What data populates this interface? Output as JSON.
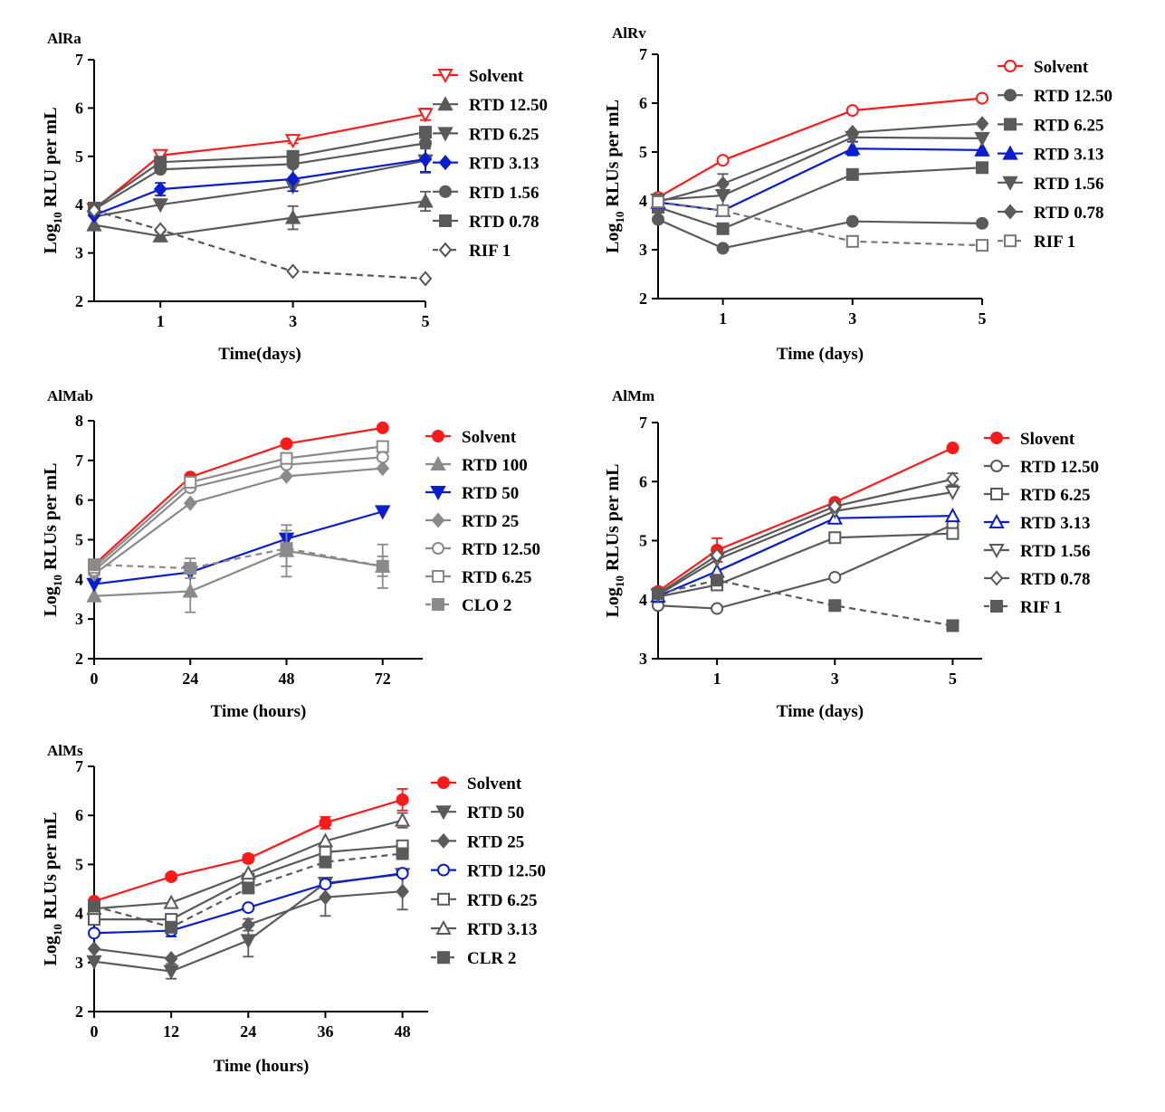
{
  "chart_data": [
    {
      "type": "line",
      "title": "AlRa",
      "ylabel": "Log10 RLU per mL",
      "ylabel_parts": [
        "Log",
        "10",
        " RLU per mL"
      ],
      "xlabel": "Time(days)",
      "x": [
        0,
        1,
        3,
        5
      ],
      "xticks": [
        1,
        3,
        5
      ],
      "xtick_labels": [
        "1",
        "3",
        "5"
      ],
      "xlim": [
        0,
        5
      ],
      "ylim": [
        2,
        7
      ],
      "yticks": [
        2,
        3,
        4,
        5,
        6,
        7
      ],
      "ytick_labels": [
        "2",
        "3",
        "4",
        "5",
        "6",
        "7"
      ],
      "grid": false,
      "legend_position": "right",
      "series": [
        {
          "name": "Solvent",
          "values": [
            3.9,
            5.02,
            5.33,
            5.87
          ],
          "errors": [
            0.05,
            0.08,
            0.06,
            0.12
          ],
          "color": "#ff1a1a",
          "marker": "triangle-down-open",
          "dashed": false
        },
        {
          "name": "RTD 12.50",
          "values": [
            3.58,
            3.35,
            3.73,
            4.07
          ],
          "errors": [
            0.05,
            0.08,
            0.24,
            0.2
          ],
          "color": "#5a5a5a",
          "marker": "triangle-up",
          "dashed": false
        },
        {
          "name": "RTD 6.25",
          "values": [
            3.75,
            4.0,
            4.38,
            4.91
          ],
          "errors": [
            0.05,
            0.05,
            0.05,
            0.25
          ],
          "color": "#5a5a5a",
          "marker": "triangle-down",
          "dashed": false
        },
        {
          "name": "RTD 3.13",
          "values": [
            3.78,
            4.32,
            4.53,
            4.94
          ],
          "errors": [
            0.05,
            0.13,
            0.25,
            0.26
          ],
          "color": "#0a1ecf",
          "marker": "diamond",
          "dashed": false
        },
        {
          "name": "RTD 1.56",
          "values": [
            3.9,
            4.73,
            4.84,
            5.27
          ],
          "errors": [
            0.05,
            0.05,
            0.06,
            0.06
          ],
          "color": "#5a5a5a",
          "marker": "circle",
          "dashed": false
        },
        {
          "name": "RTD 0.78",
          "values": [
            3.93,
            4.88,
            5.0,
            5.5
          ],
          "errors": [
            0.05,
            0.05,
            0.05,
            0.1
          ],
          "color": "#5a5a5a",
          "marker": "square",
          "dashed": false
        },
        {
          "name": "RIF 1",
          "values": [
            3.88,
            3.48,
            2.62,
            2.47
          ],
          "errors": [
            0.05,
            0.05,
            0.04,
            0.04
          ],
          "color": "#555555",
          "marker": "diamond-open",
          "dashed": true
        }
      ]
    },
    {
      "type": "line",
      "title": "AlRv",
      "ylabel": "Log10 RLUs per mL",
      "ylabel_parts": [
        "Log",
        "10",
        " RLUs per mL"
      ],
      "xlabel": "Time (days)",
      "x": [
        0,
        1,
        3,
        5
      ],
      "xticks": [
        1,
        3,
        5
      ],
      "xtick_labels": [
        "1",
        "3",
        "5"
      ],
      "xlim": [
        0,
        5
      ],
      "ylim": [
        2,
        7
      ],
      "yticks": [
        2,
        3,
        4,
        5,
        6,
        7
      ],
      "ytick_labels": [
        "2",
        "3",
        "4",
        "5",
        "6",
        "7"
      ],
      "grid": false,
      "legend_position": "right",
      "series": [
        {
          "name": "Solvent",
          "values": [
            4.07,
            4.83,
            5.85,
            6.1
          ],
          "errors": [
            0.04,
            0.05,
            0.04,
            0.04
          ],
          "color": "#ff1a1a",
          "marker": "circle-open",
          "dashed": false
        },
        {
          "name": "RTD 12.50",
          "values": [
            3.62,
            3.03,
            3.58,
            3.54
          ],
          "errors": [
            0.04,
            0.04,
            0.04,
            0.04
          ],
          "color": "#5a5a5a",
          "marker": "circle",
          "dashed": false
        },
        {
          "name": "RTD 6.25",
          "values": [
            3.87,
            3.43,
            4.54,
            4.68
          ],
          "errors": [
            0.04,
            0.04,
            0.04,
            0.04
          ],
          "color": "#5a5a5a",
          "marker": "square",
          "dashed": false
        },
        {
          "name": "RTD 3.13",
          "values": [
            3.97,
            3.8,
            5.07,
            5.04
          ],
          "errors": [
            0.04,
            0.08,
            0.14,
            0.04
          ],
          "color": "#0a1ecf",
          "marker": "triangle-up",
          "dashed": false
        },
        {
          "name": "RTD 1.56",
          "values": [
            4.02,
            4.11,
            5.3,
            5.28
          ],
          "errors": [
            0.04,
            0.04,
            0.04,
            0.04
          ],
          "color": "#5a5a5a",
          "marker": "triangle-down",
          "dashed": false
        },
        {
          "name": "RTD 0.78",
          "values": [
            3.98,
            4.35,
            5.4,
            5.58
          ],
          "errors": [
            0.04,
            0.2,
            0.04,
            0.04
          ],
          "color": "#5a5a5a",
          "marker": "diamond",
          "dashed": false
        },
        {
          "name": "RIF 1",
          "values": [
            3.98,
            3.8,
            3.17,
            3.09
          ],
          "errors": [
            0.04,
            0.04,
            0.04,
            0.04
          ],
          "color": "#777777",
          "marker": "square-open",
          "dashed": true
        }
      ]
    },
    {
      "type": "line",
      "title": "AlMab",
      "ylabel": "Log10 RLUs per mL",
      "ylabel_parts": [
        "Log",
        "10",
        " RLUs per mL"
      ],
      "xlabel": "Time (hours)",
      "x": [
        0,
        24,
        48,
        72
      ],
      "xticks": [
        0,
        24,
        48,
        72
      ],
      "xtick_labels": [
        "0",
        "24",
        "48",
        "72"
      ],
      "xlim": [
        0,
        82
      ],
      "ylim": [
        2,
        8
      ],
      "yticks": [
        2,
        3,
        4,
        5,
        6,
        7,
        8
      ],
      "ytick_labels": [
        "2",
        "3",
        "4",
        "5",
        "6",
        "7",
        "8"
      ],
      "grid": false,
      "legend_position": "right",
      "series": [
        {
          "name": "Solvent",
          "values": [
            4.37,
            6.58,
            7.42,
            7.82
          ],
          "errors": [
            0.04,
            0.04,
            0.04,
            0.04
          ],
          "color": "#ff1a1a",
          "marker": "circle",
          "dashed": false
        },
        {
          "name": "RTD 100",
          "values": [
            3.58,
            3.7,
            4.72,
            4.33
          ],
          "errors": [
            0.04,
            0.53,
            0.65,
            0.55
          ],
          "color": "#8a8a8a",
          "marker": "triangle-up",
          "dashed": false
        },
        {
          "name": "RTD 50",
          "values": [
            3.88,
            4.18,
            5.02,
            5.71
          ],
          "errors": [
            0.04,
            0.04,
            0.04,
            0.04
          ],
          "color": "#0a1ecf",
          "marker": "triangle-down",
          "dashed": false
        },
        {
          "name": "RTD 25",
          "values": [
            4.13,
            5.92,
            6.6,
            6.8
          ],
          "errors": [
            0.04,
            0.04,
            0.04,
            0.04
          ],
          "color": "#8a8a8a",
          "marker": "diamond",
          "dashed": false
        },
        {
          "name": "RTD 12.50",
          "values": [
            4.22,
            6.31,
            6.89,
            7.08
          ],
          "errors": [
            0.04,
            0.04,
            0.04,
            0.04
          ],
          "color": "#8a8a8a",
          "marker": "circle-open",
          "dashed": false
        },
        {
          "name": "RTD 6.25",
          "values": [
            4.3,
            6.45,
            7.05,
            7.35
          ],
          "errors": [
            0.04,
            0.04,
            0.04,
            0.04
          ],
          "color": "#8a8a8a",
          "marker": "square-open",
          "dashed": false
        },
        {
          "name": "CLO 2",
          "values": [
            4.37,
            4.28,
            4.78,
            4.33
          ],
          "errors": [
            0.04,
            0.25,
            0.45,
            0.25
          ],
          "color": "#8a8a8a",
          "marker": "square",
          "dashed": true
        }
      ]
    },
    {
      "type": "line",
      "title": "AlMm",
      "ylabel": "Log10 RLUs per mL",
      "ylabel_parts": [
        "Log",
        "10",
        " RLUs per mL"
      ],
      "xlabel": "Time (days)",
      "x": [
        0,
        1,
        3,
        5
      ],
      "xticks": [
        1,
        3,
        5
      ],
      "xtick_labels": [
        "1",
        "3",
        "5"
      ],
      "xlim": [
        0,
        5.5
      ],
      "ylim": [
        3,
        7
      ],
      "yticks": [
        3,
        4,
        5,
        6,
        7
      ],
      "ytick_labels": [
        "3",
        "4",
        "5",
        "6",
        "7"
      ],
      "grid": false,
      "legend_position": "right",
      "series": [
        {
          "name": "Slovent",
          "values": [
            4.14,
            4.84,
            5.65,
            6.57
          ],
          "errors": [
            0.04,
            0.2,
            0.04,
            0.04
          ],
          "color": "#ff1a1a",
          "marker": "circle",
          "dashed": false
        },
        {
          "name": "RTD 12.50",
          "values": [
            3.9,
            3.85,
            4.38,
            5.27
          ],
          "errors": [
            0.04,
            0.04,
            0.04,
            0.04
          ],
          "color": "#5a5a5a",
          "marker": "circle-open",
          "dashed": false
        },
        {
          "name": "RTD 6.25",
          "values": [
            4.05,
            4.25,
            5.05,
            5.12
          ],
          "errors": [
            0.04,
            0.04,
            0.04,
            0.04
          ],
          "color": "#5a5a5a",
          "marker": "square-open",
          "dashed": false
        },
        {
          "name": "RTD 3.13",
          "values": [
            4.06,
            4.48,
            5.38,
            5.42
          ],
          "errors": [
            0.04,
            0.04,
            0.04,
            0.04
          ],
          "color": "#0a1ecf",
          "marker": "triangle-up-open",
          "dashed": false
        },
        {
          "name": "RTD 1.56",
          "values": [
            4.08,
            4.68,
            5.5,
            5.82
          ],
          "errors": [
            0.04,
            0.04,
            0.04,
            0.04
          ],
          "color": "#5a5a5a",
          "marker": "triangle-down-open",
          "dashed": false
        },
        {
          "name": "RTD 0.78",
          "values": [
            4.1,
            4.75,
            5.58,
            6.04
          ],
          "errors": [
            0.04,
            0.04,
            0.04,
            0.1
          ],
          "color": "#5a5a5a",
          "marker": "diamond-open",
          "dashed": false
        },
        {
          "name": "RIF 1",
          "values": [
            4.1,
            4.33,
            3.9,
            3.56
          ],
          "errors": [
            0.04,
            0.04,
            0.04,
            0.08
          ],
          "color": "#5a5a5a",
          "marker": "square",
          "dashed": true
        }
      ]
    },
    {
      "type": "line",
      "title": "AlMs",
      "ylabel": "Log10 RLUs per mL",
      "ylabel_parts": [
        "Log",
        "10",
        " RLUs per mL"
      ],
      "xlabel": "Time (hours)",
      "x": [
        0,
        12,
        24,
        36,
        48
      ],
      "xticks": [
        0,
        12,
        24,
        36,
        48
      ],
      "xtick_labels": [
        "0",
        "12",
        "24",
        "36",
        "48"
      ],
      "xlim": [
        0,
        52
      ],
      "ylim": [
        2,
        7
      ],
      "yticks": [
        2,
        3,
        4,
        5,
        6,
        7
      ],
      "ytick_labels": [
        "2",
        "3",
        "4",
        "5",
        "6",
        "7"
      ],
      "grid": false,
      "legend_position": "right",
      "series": [
        {
          "name": "Solvent",
          "values": [
            4.25,
            4.75,
            5.12,
            5.85,
            6.32
          ],
          "errors": [
            0.04,
            0.04,
            0.08,
            0.12,
            0.22
          ],
          "color": "#ff1a1a",
          "marker": "circle",
          "dashed": false
        },
        {
          "name": "RTD 50",
          "values": [
            3.02,
            2.82,
            3.45,
            4.62,
            4.8
          ],
          "errors": [
            0.04,
            0.15,
            0.33,
            0.04,
            0.04
          ],
          "color": "#5a5a5a",
          "marker": "triangle-down",
          "dashed": false
        },
        {
          "name": "RTD 25",
          "values": [
            3.28,
            3.08,
            3.77,
            4.33,
            4.45
          ],
          "errors": [
            0.04,
            0.04,
            0.12,
            0.38,
            0.37
          ],
          "color": "#5a5a5a",
          "marker": "diamond",
          "dashed": false
        },
        {
          "name": "RTD 12.50",
          "values": [
            3.6,
            3.65,
            4.12,
            4.6,
            4.82
          ],
          "errors": [
            0.04,
            0.12,
            0.04,
            0.04,
            0.04
          ],
          "color": "#0a1ecf",
          "marker": "circle-open",
          "dashed": false
        },
        {
          "name": "RTD 6.25",
          "values": [
            3.88,
            3.88,
            4.7,
            5.25,
            5.38
          ],
          "errors": [
            0.04,
            0.04,
            0.04,
            0.04,
            0.04
          ],
          "color": "#5a5a5a",
          "marker": "square-open",
          "dashed": false
        },
        {
          "name": "RTD 3.13",
          "values": [
            4.1,
            4.22,
            4.82,
            5.48,
            5.9
          ],
          "errors": [
            0.04,
            0.04,
            0.04,
            0.04,
            0.15
          ],
          "color": "#5a5a5a",
          "marker": "triangle-up-open",
          "dashed": false
        },
        {
          "name": "CLR 2",
          "values": [
            4.15,
            3.72,
            4.52,
            5.05,
            5.22
          ],
          "errors": [
            0.04,
            0.04,
            0.04,
            0.04,
            0.04
          ],
          "color": "#5a5a5a",
          "marker": "square",
          "dashed": true
        }
      ]
    }
  ]
}
